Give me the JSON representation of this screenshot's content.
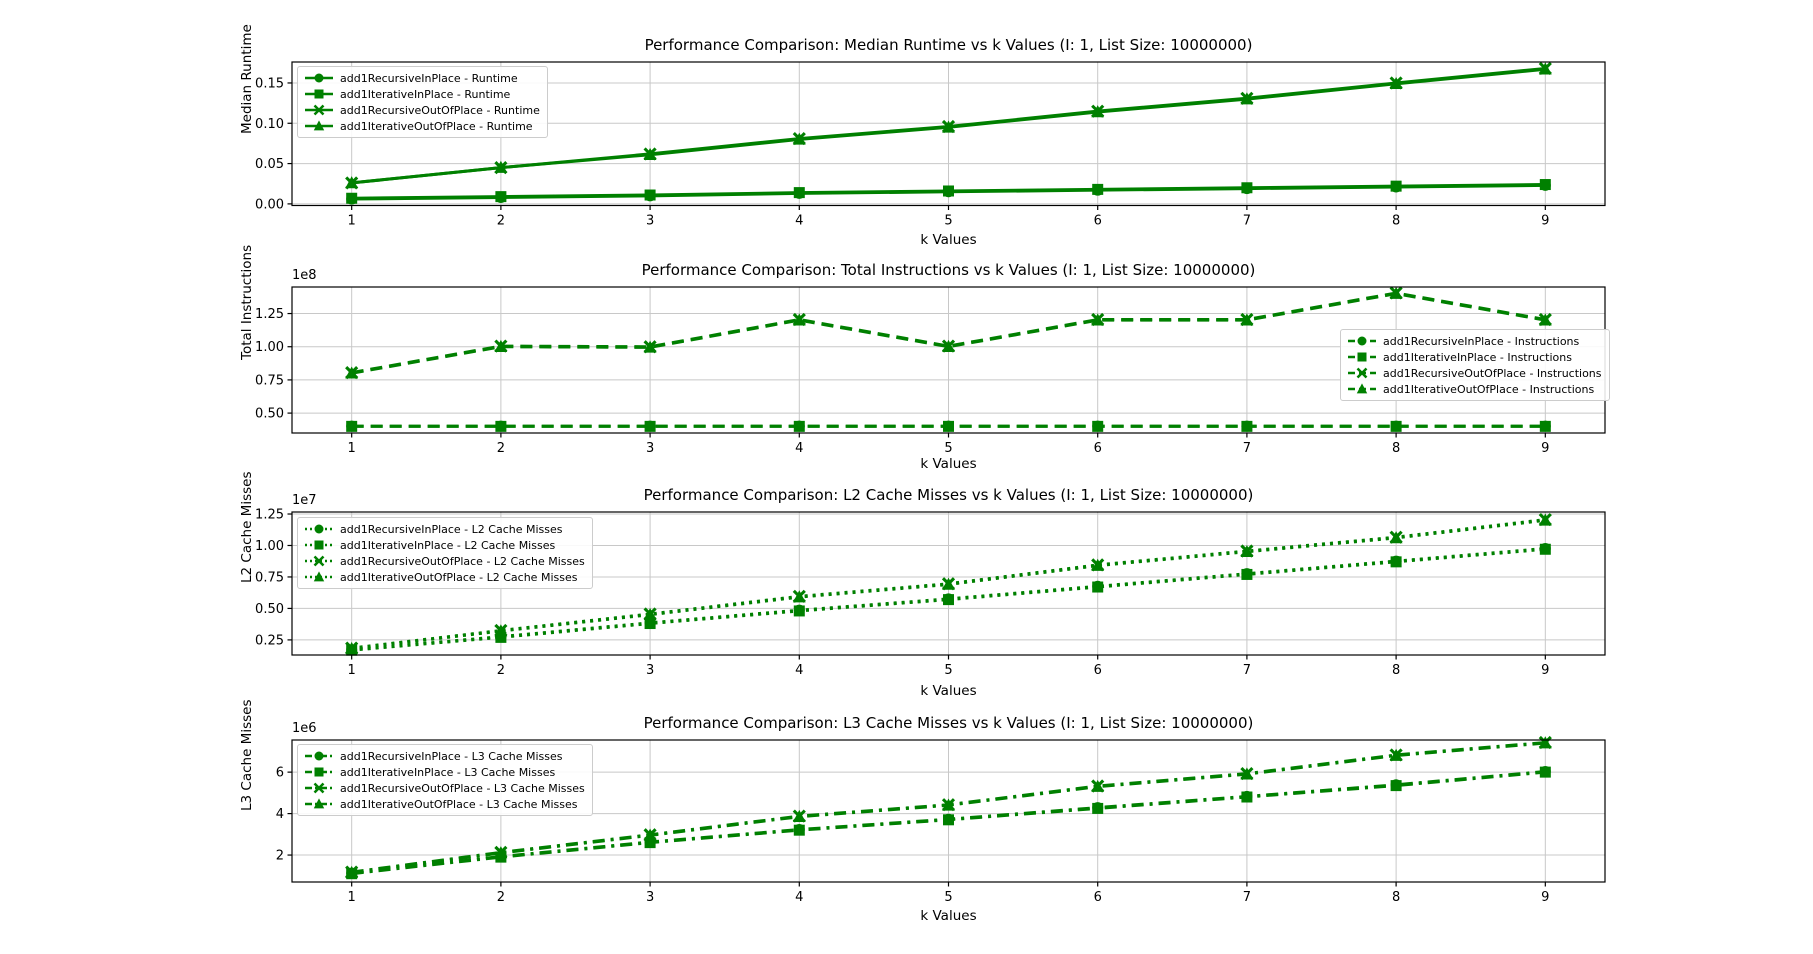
{
  "figure": {
    "background": "#ffffff",
    "accent_green": "#008000",
    "grid_color": "#c8c8c8",
    "axes_edge_color": "#000000"
  },
  "chart_data": [
    {
      "type": "line",
      "title": "Performance Comparison: Median Runtime vs k Values (I: 1, List Size: 10000000)",
      "xlabel": "k Values",
      "ylabel": "Median Runtime",
      "offset_text": "",
      "linestyle": "solid",
      "grid": true,
      "legend_loc": "upper-left",
      "x": [
        1,
        2,
        3,
        4,
        5,
        6,
        7,
        8,
        9
      ],
      "xlim": [
        0.6,
        9.4
      ],
      "ylim": [
        -0.002,
        0.176
      ],
      "yticks": [
        0.0,
        0.05,
        0.1,
        0.15
      ],
      "ytick_labels": [
        "0.00",
        "0.05",
        "0.10",
        "0.15"
      ],
      "xtick_labels": [
        "1",
        "2",
        "3",
        "4",
        "5",
        "6",
        "7",
        "8",
        "9"
      ],
      "series": [
        {
          "name": "add1RecursiveInPlace - Runtime",
          "marker": "circle",
          "color": "#008000",
          "values": [
            0.006,
            0.008,
            0.01,
            0.013,
            0.015,
            0.017,
            0.019,
            0.021,
            0.023
          ]
        },
        {
          "name": "add1IterativeInPlace - Runtime",
          "marker": "square",
          "color": "#008000",
          "values": [
            0.007,
            0.009,
            0.011,
            0.014,
            0.016,
            0.018,
            0.02,
            0.022,
            0.024
          ]
        },
        {
          "name": "add1RecursiveOutOfPlace - Runtime",
          "marker": "x",
          "color": "#008000",
          "values": [
            0.026,
            0.045,
            0.062,
            0.081,
            0.096,
            0.115,
            0.131,
            0.15,
            0.168
          ]
        },
        {
          "name": "add1IterativeOutOfPlace - Runtime",
          "marker": "triangle",
          "color": "#008000",
          "values": [
            0.026,
            0.045,
            0.061,
            0.08,
            0.095,
            0.114,
            0.13,
            0.149,
            0.167
          ]
        }
      ]
    },
    {
      "type": "line",
      "title": "Performance Comparison: Total Instructions vs k Values (I: 1, List Size: 10000000)",
      "xlabel": "k Values",
      "ylabel": "Total Instructions",
      "offset_text": "1e8",
      "linestyle": "dashed",
      "grid": true,
      "legend_loc": "center-right",
      "x": [
        1,
        2,
        3,
        4,
        5,
        6,
        7,
        8,
        9
      ],
      "xlim": [
        0.6,
        9.4
      ],
      "ylim": [
        35000000,
        145000000
      ],
      "yticks": [
        50000000,
        75000000,
        100000000,
        125000000
      ],
      "ytick_labels": [
        "0.50",
        "0.75",
        "1.00",
        "1.25"
      ],
      "xtick_labels": [
        "1",
        "2",
        "3",
        "4",
        "5",
        "6",
        "7",
        "8",
        "9"
      ],
      "series": [
        {
          "name": "add1RecursiveInPlace - Instructions",
          "marker": "circle",
          "color": "#008000",
          "values": [
            40200000,
            40200000,
            40200000,
            40200000,
            40200000,
            40200000,
            40200000,
            40200000,
            40200000
          ]
        },
        {
          "name": "add1IterativeInPlace - Instructions",
          "marker": "square",
          "color": "#008000",
          "values": [
            40000000,
            40000000,
            40000000,
            40000000,
            40000000,
            40000000,
            40000000,
            40000000,
            40000000
          ]
        },
        {
          "name": "add1RecursiveOutOfPlace - Instructions",
          "marker": "x",
          "color": "#008000",
          "values": [
            80500000,
            100500000,
            100000000,
            120500000,
            100500000,
            120500000,
            120500000,
            140500000,
            120500000
          ]
        },
        {
          "name": "add1IterativeOutOfPlace - Instructions",
          "marker": "triangle",
          "color": "#008000",
          "values": [
            80000000,
            100000000,
            99500000,
            120000000,
            100000000,
            120000000,
            120000000,
            140000000,
            120000000
          ]
        }
      ]
    },
    {
      "type": "line",
      "title": "Performance Comparison: L2 Cache Misses vs k Values (I: 1, List Size: 10000000)",
      "xlabel": "k Values",
      "ylabel": "L2 Cache Misses",
      "offset_text": "1e7",
      "linestyle": "dotted",
      "grid": true,
      "legend_loc": "upper-left",
      "x": [
        1,
        2,
        3,
        4,
        5,
        6,
        7,
        8,
        9
      ],
      "xlim": [
        0.6,
        9.4
      ],
      "ylim": [
        1300000,
        12660000
      ],
      "yticks": [
        2500000,
        5000000,
        7500000,
        10000000,
        12500000
      ],
      "ytick_labels": [
        "0.25",
        "0.50",
        "0.75",
        "1.00",
        "1.25"
      ],
      "xtick_labels": [
        "1",
        "2",
        "3",
        "4",
        "5",
        "6",
        "7",
        "8",
        "9"
      ],
      "series": [
        {
          "name": "add1RecursiveInPlace - L2 Cache Misses",
          "marker": "circle",
          "color": "#008000",
          "values": [
            1720000,
            2760000,
            3860000,
            4860000,
            5760000,
            6760000,
            7760000,
            8760000,
            9760000
          ]
        },
        {
          "name": "add1IterativeInPlace - L2 Cache Misses",
          "marker": "square",
          "color": "#008000",
          "values": [
            1680000,
            2700000,
            3800000,
            4800000,
            5700000,
            6700000,
            7700000,
            8700000,
            9700000
          ]
        },
        {
          "name": "add1RecursiveOutOfPlace - L2 Cache Misses",
          "marker": "x",
          "color": "#008000",
          "values": [
            1850000,
            3250000,
            4560000,
            5960000,
            6960000,
            8460000,
            9560000,
            10660000,
            12060000
          ]
        },
        {
          "name": "add1IterativeOutOfPlace - L2 Cache Misses",
          "marker": "triangle",
          "color": "#008000",
          "values": [
            1800000,
            3200000,
            4500000,
            5900000,
            6900000,
            8400000,
            9500000,
            10600000,
            12000000
          ]
        }
      ]
    },
    {
      "type": "line",
      "title": "Performance Comparison: L3 Cache Misses vs k Values (I: 1, List Size: 10000000)",
      "xlabel": "k Values",
      "ylabel": "L3 Cache Misses",
      "offset_text": "1e6",
      "linestyle": "dashdot",
      "grid": true,
      "legend_loc": "upper-left",
      "x": [
        1,
        2,
        3,
        4,
        5,
        6,
        7,
        8,
        9
      ],
      "xlim": [
        0.6,
        9.4
      ],
      "ylim": [
        700000,
        7550000
      ],
      "yticks": [
        2000000,
        4000000,
        6000000
      ],
      "ytick_labels": [
        "2",
        "4",
        "6"
      ],
      "xtick_labels": [
        "1",
        "2",
        "3",
        "4",
        "5",
        "6",
        "7",
        "8",
        "9"
      ],
      "series": [
        {
          "name": "add1RecursiveInPlace - L3 Cache Misses",
          "marker": "circle",
          "color": "#008000",
          "values": [
            1130000,
            1930000,
            2630000,
            3230000,
            3730000,
            4290000,
            4830000,
            5390000,
            6030000
          ]
        },
        {
          "name": "add1IterativeInPlace - L3 Cache Misses",
          "marker": "square",
          "color": "#008000",
          "values": [
            1100000,
            1900000,
            2600000,
            3200000,
            3700000,
            4250000,
            4800000,
            5350000,
            6000000
          ]
        },
        {
          "name": "add1RecursiveOutOfPlace - L3 Cache Misses",
          "marker": "x",
          "color": "#008000",
          "values": [
            1180000,
            2130000,
            2980000,
            3880000,
            4430000,
            5330000,
            5930000,
            6830000,
            7430000
          ]
        },
        {
          "name": "add1IterativeOutOfPlace - L3 Cache Misses",
          "marker": "triangle",
          "color": "#008000",
          "values": [
            1150000,
            2100000,
            2950000,
            3850000,
            4400000,
            5300000,
            5900000,
            6800000,
            7400000
          ]
        }
      ]
    }
  ]
}
